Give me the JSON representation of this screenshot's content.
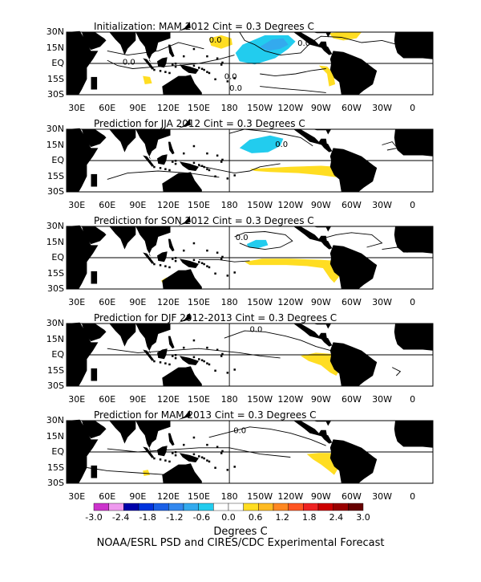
{
  "panels": [
    {
      "title": "Initialization: MAM 2012  Cint = 0.3 Degrees C"
    },
    {
      "title": "Prediction for JJA 2012  Cint = 0.3 Degrees C"
    },
    {
      "title": "Prediction for SON 2012  Cint = 0.3 Degrees C"
    },
    {
      "title": "Prediction for DJF 2012-2013  Cint = 0.3 Degrees C"
    },
    {
      "title": "Prediction for MAM 2013  Cint = 0.3 Degrees C"
    }
  ],
  "lat_labels": [
    "30N",
    "15N",
    "EQ",
    "15S",
    "30S"
  ],
  "lon_labels": [
    "30E",
    "60E",
    "90E",
    "120E",
    "150E",
    "180",
    "150W",
    "120W",
    "90W",
    "60W",
    "30W",
    "0"
  ],
  "contour_label": "0.0",
  "colorbar": {
    "colors": [
      "#cc33cc",
      "#ee99ee",
      "#0000aa",
      "#0033dd",
      "#1a5fe6",
      "#3388ee",
      "#33aaee",
      "#22ccee",
      "#ffffff",
      "#ffffff",
      "#ffdd22",
      "#ffbb22",
      "#ff8822",
      "#ff5522",
      "#ee2222",
      "#cc0000",
      "#990000",
      "#660000"
    ],
    "labels": [
      "-3.0",
      "-2.4",
      "-1.8",
      "-1.2",
      "-0.6",
      "0.0",
      "0.6",
      "1.2",
      "1.8",
      "2.4",
      "3.0"
    ],
    "units": "Degrees C"
  },
  "credit": "NOAA/ESRL PSD and CIRES/CDC Experimental Forecast",
  "colors": {
    "land": "#000000",
    "warm_anomaly": "#ffdd22",
    "cool_anomaly": "#22ccee",
    "strong_cool_anomaly": "#33aaee"
  }
}
